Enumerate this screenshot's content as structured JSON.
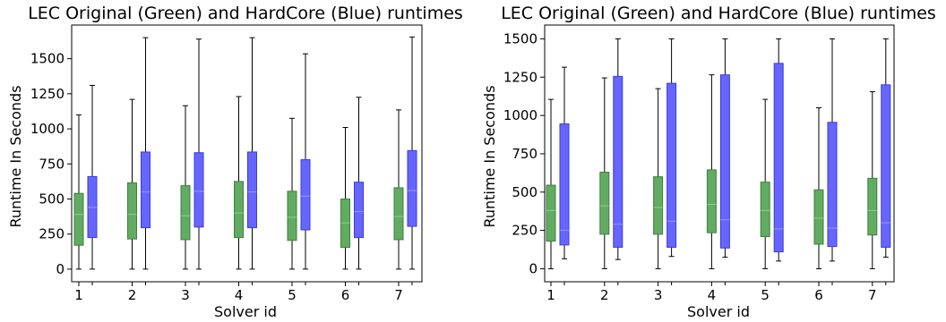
{
  "chart_data": [
    {
      "type": "box",
      "title": "LEC Original (Green) and HardCore (Blue) runtimes",
      "xlabel": "Solver id",
      "ylabel": "Runtime In Seconds",
      "categories": [
        "1",
        "2",
        "3",
        "4",
        "5",
        "6",
        "7"
      ],
      "ylim": [
        -90,
        1740
      ],
      "yticks": [
        0,
        250,
        500,
        750,
        1000,
        1250,
        1500
      ],
      "grid": false,
      "colors": {
        "green": "#62ab62",
        "blue": "#6666ff"
      },
      "series": [
        {
          "name": "Green",
          "boxes": [
            {
              "min": 0,
              "q1": 170,
              "median": 390,
              "q3": 540,
              "max": 1100
            },
            {
              "min": 0,
              "q1": 215,
              "median": 390,
              "q3": 615,
              "max": 1210
            },
            {
              "min": 0,
              "q1": 210,
              "median": 380,
              "q3": 595,
              "max": 1165
            },
            {
              "min": 0,
              "q1": 225,
              "median": 400,
              "q3": 625,
              "max": 1230
            },
            {
              "min": 0,
              "q1": 205,
              "median": 370,
              "q3": 555,
              "max": 1075
            },
            {
              "min": 0,
              "q1": 155,
              "median": 330,
              "q3": 500,
              "max": 1010
            },
            {
              "min": 0,
              "q1": 210,
              "median": 375,
              "q3": 580,
              "max": 1135
            }
          ]
        },
        {
          "name": "Blue",
          "boxes": [
            {
              "min": 0,
              "q1": 225,
              "median": 440,
              "q3": 660,
              "max": 1310
            },
            {
              "min": 0,
              "q1": 295,
              "median": 550,
              "q3": 835,
              "max": 1650
            },
            {
              "min": 0,
              "q1": 300,
              "median": 555,
              "q3": 830,
              "max": 1640
            },
            {
              "min": 0,
              "q1": 295,
              "median": 550,
              "q3": 835,
              "max": 1650
            },
            {
              "min": 0,
              "q1": 280,
              "median": 520,
              "q3": 780,
              "max": 1535
            },
            {
              "min": 0,
              "q1": 225,
              "median": 410,
              "q3": 620,
              "max": 1225
            },
            {
              "min": 0,
              "q1": 305,
              "median": 560,
              "q3": 845,
              "max": 1655
            }
          ]
        }
      ]
    },
    {
      "type": "box",
      "title": "LEC Original (Green) and HardCore (Blue) runtimes",
      "xlabel": "Solver id",
      "ylabel": "Runtime In Seconds",
      "categories": [
        "1",
        "2",
        "3",
        "4",
        "5",
        "6",
        "7"
      ],
      "ylim": [
        -85,
        1590
      ],
      "yticks": [
        0,
        250,
        500,
        750,
        1000,
        1250,
        1500
      ],
      "grid": false,
      "colors": {
        "green": "#62ab62",
        "blue": "#6666ff"
      },
      "series": [
        {
          "name": "Green",
          "boxes": [
            {
              "min": 0,
              "q1": 180,
              "median": 380,
              "q3": 545,
              "max": 1105
            },
            {
              "min": 0,
              "q1": 225,
              "median": 410,
              "q3": 630,
              "max": 1245
            },
            {
              "min": 0,
              "q1": 225,
              "median": 400,
              "q3": 600,
              "max": 1175
            },
            {
              "min": 0,
              "q1": 235,
              "median": 420,
              "q3": 645,
              "max": 1265
            },
            {
              "min": 0,
              "q1": 210,
              "median": 380,
              "q3": 565,
              "max": 1105
            },
            {
              "min": 0,
              "q1": 160,
              "median": 330,
              "q3": 515,
              "max": 1050
            },
            {
              "min": 0,
              "q1": 220,
              "median": 380,
              "q3": 590,
              "max": 1155
            }
          ]
        },
        {
          "name": "Blue",
          "boxes": [
            {
              "min": 65,
              "q1": 155,
              "median": 250,
              "q3": 945,
              "max": 1315
            },
            {
              "min": 60,
              "q1": 140,
              "median": 290,
              "q3": 1255,
              "max": 1500
            },
            {
              "min": 80,
              "q1": 140,
              "median": 310,
              "q3": 1210,
              "max": 1500
            },
            {
              "min": 75,
              "q1": 135,
              "median": 320,
              "q3": 1265,
              "max": 1500
            },
            {
              "min": 50,
              "q1": 110,
              "median": 260,
              "q3": 1340,
              "max": 1500
            },
            {
              "min": 50,
              "q1": 145,
              "median": 265,
              "q3": 955,
              "max": 1500
            },
            {
              "min": 75,
              "q1": 140,
              "median": 300,
              "q3": 1200,
              "max": 1500
            }
          ]
        }
      ]
    }
  ]
}
